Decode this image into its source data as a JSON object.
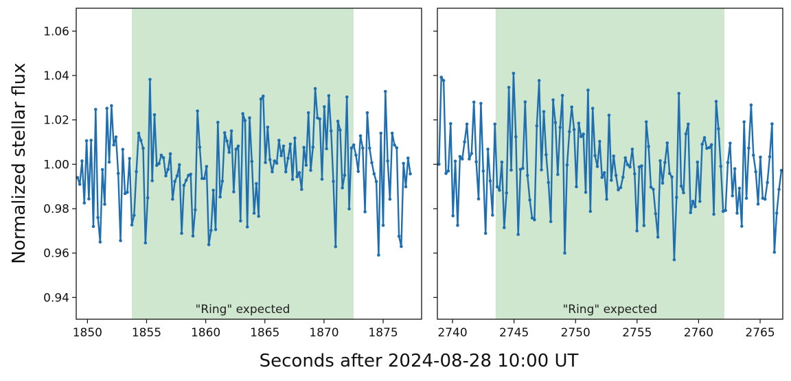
{
  "chart_data": [
    {
      "type": "line",
      "panel": "left",
      "xlim": [
        1849.05,
        1878.25
      ],
      "ylim": [
        0.9302,
        1.0703
      ],
      "xticks": [
        1850,
        1855,
        1860,
        1865,
        1870,
        1875
      ],
      "xtick_labels": [
        "1850",
        "1855",
        "1860",
        "1865",
        "1870",
        "1875"
      ],
      "yticks": [
        0.94,
        0.96,
        0.98,
        1.0,
        1.02,
        1.04,
        1.06
      ],
      "ytick_labels": [
        "0.94",
        "0.96",
        "0.98",
        "1.00",
        "1.02",
        "1.04",
        "1.06"
      ],
      "shaded_span": [
        1853.75,
        1872.5
      ],
      "annotation": "\"Ring\" expected",
      "x_start": 1849.16,
      "x_step": 0.1914,
      "y": [
        0.994,
        0.991,
        1.0015,
        0.9826,
        1.0106,
        0.9844,
        1.0108,
        0.972,
        1.0247,
        0.976,
        0.965,
        0.9976,
        0.982,
        1.0252,
        1.001,
        1.0264,
        1.0087,
        1.0123,
        0.9959,
        0.9656,
        1.0067,
        0.9868,
        0.9874,
        1.0026,
        0.9727,
        0.977,
        0.9967,
        1.014,
        1.0108,
        1.0072,
        0.9646,
        0.9849,
        1.0382,
        0.9926,
        1.0223,
        0.9995,
        1.0003,
        1.0041,
        1.0029,
        0.9948,
        0.9977,
        1.0047,
        0.9843,
        0.9923,
        0.9948,
        0.9998,
        0.9689,
        0.9905,
        0.9928,
        0.995,
        0.9955,
        0.9677,
        0.9795,
        1.024,
        1.0077,
        0.9936,
        0.9936,
        0.999,
        0.9638,
        0.9702,
        0.9883,
        0.9706,
        1.0189,
        0.9853,
        0.9924,
        1.0142,
        1.0105,
        1.0054,
        1.015,
        0.9876,
        1.0068,
        1.0082,
        0.9745,
        1.0228,
        1.0197,
        0.9718,
        1.0209,
        1.0013,
        0.978,
        0.9913,
        0.9766,
        1.0294,
        1.0307,
        1.0008,
        1.0167,
        1.0021,
        0.9966,
        1.0015,
        1.0005,
        1.0108,
        1.0039,
        1.0082,
        0.9966,
        1.0027,
        1.0091,
        0.9932,
        1.0118,
        0.9944,
        0.9962,
        0.9887,
        1.0076,
        0.9996,
        1.0232,
        0.9973,
        1.0077,
        1.0341,
        1.0209,
        1.0204,
        0.9933,
        1.0259,
        1.007,
        1.0309,
        1.015,
        0.9923,
        0.9629,
        1.0194,
        1.0154,
        0.9894,
        0.9951,
        1.0303,
        0.9799,
        1.0073,
        1.0087,
        1.0041,
        0.9968,
        1.0128,
        1.0073,
        0.9786,
        1.0232,
        1.0073,
        1.0007,
        0.9957,
        0.9922,
        0.9591,
        1.014,
        0.9725,
        1.0328,
        1.0015,
        0.9843,
        1.014,
        1.0087,
        1.0074,
        0.9676,
        0.963,
        1.0004,
        0.9899,
        1.0028,
        0.9957
      ]
    },
    {
      "type": "line",
      "panel": "right",
      "xlim": [
        2738.77,
        2766.84
      ],
      "ylim": [
        0.9302,
        1.0703
      ],
      "xticks": [
        2740,
        2745,
        2750,
        2755,
        2760,
        2765
      ],
      "xtick_labels": [
        "2740",
        "2745",
        "2750",
        "2755",
        "2760",
        "2765"
      ],
      "yticks": [
        0.94,
        0.96,
        0.98,
        1.0,
        1.02,
        1.04,
        1.06
      ],
      "shaded_span": [
        2743.5,
        2762.1
      ],
      "annotation": "\"Ring\" expected",
      "x_start": 2738.9,
      "x_step": 0.1893,
      "y": [
        1.0,
        1.0392,
        1.0377,
        0.9959,
        0.997,
        1.0183,
        0.9768,
        1.0014,
        0.9725,
        1.0035,
        1.0024,
        1.0101,
        1.0181,
        1.0024,
        1.0049,
        1.028,
        1.0011,
        0.9844,
        1.0274,
        0.997,
        0.9689,
        1.0068,
        0.9925,
        0.9771,
        1.0181,
        0.9899,
        0.9883,
        1.001,
        0.9715,
        0.9871,
        1.0346,
        0.9974,
        1.041,
        1.0124,
        0.9684,
        0.9977,
        0.9982,
        1.0281,
        0.995,
        0.9839,
        0.9758,
        0.975,
        1.0173,
        1.0377,
        0.9975,
        1.0237,
        1.0043,
        0.9918,
        0.9742,
        1.029,
        1.0188,
        0.9954,
        1.0166,
        1.031,
        0.96,
        0.9997,
        1.0147,
        1.0258,
        1.0156,
        0.9899,
        1.0185,
        1.0125,
        1.0136,
        0.9874,
        1.0334,
        0.9788,
        1.0252,
        1.0039,
        0.999,
        1.0103,
        0.9941,
        0.9962,
        0.9843,
        1.0221,
        0.9928,
        1.0037,
        0.995,
        0.9885,
        0.9895,
        0.9942,
        1.0029,
        0.9998,
        0.9988,
        1.0068,
        0.9957,
        0.97,
        0.9988,
        0.9993,
        0.9724,
        1.0191,
        1.008,
        0.9897,
        0.9887,
        0.9777,
        0.9672,
        1.0016,
        0.9915,
        1.0008,
        1.0096,
        0.9959,
        0.9943,
        0.957,
        0.9851,
        1.0319,
        0.9902,
        0.9872,
        1.0137,
        1.0181,
        0.9782,
        0.9833,
        0.9809,
        1.001,
        0.9833,
        1.009,
        1.012,
        1.0072,
        1.0075,
        1.0088,
        0.9775,
        1.0283,
        1.016,
        0.9991,
        0.9788,
        0.9792,
        1.0008,
        1.0095,
        0.9858,
        0.998,
        0.978,
        0.9892,
        0.9721,
        1.0191,
        0.9847,
        1.0073,
        1.0267,
        1.0041,
        0.9966,
        0.9821,
        1.0032,
        0.9847,
        0.9843,
        0.9918,
        1.0034,
        1.0182,
        0.9604,
        0.978,
        0.9887,
        0.9972
      ]
    }
  ],
  "labels": {
    "ylabel": "Normalized stellar flux",
    "xlabel": "Seconds after 2024-08-28 10:00 UT"
  },
  "colors": {
    "line": "#1f6fb0",
    "shade": "#cfe6cf",
    "axis": "#111111"
  }
}
